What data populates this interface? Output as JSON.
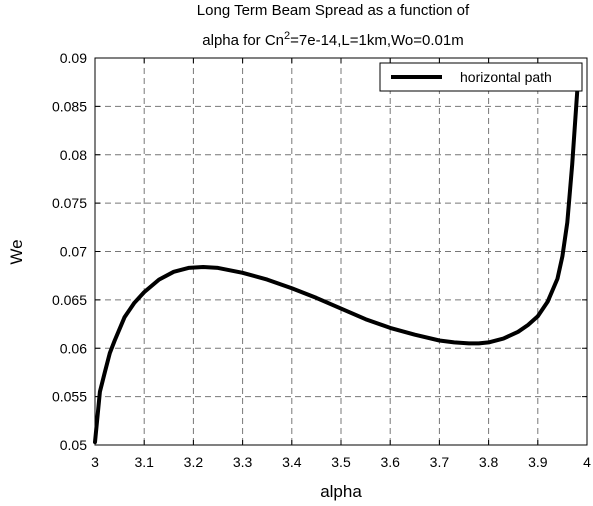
{
  "chart_data": {
    "type": "line",
    "title": {
      "line1": "Long Term Beam Spread as a function of",
      "line2_prefix": "alpha for Cn",
      "line2_superscript": "2",
      "line2_suffix": "=7e-14,L=1km,Wo=0.01m"
    },
    "xlabel": "alpha",
    "ylabel": "We",
    "xlim": [
      3,
      4
    ],
    "ylim": [
      0.05,
      0.09
    ],
    "xticks": [
      "3",
      "3.1",
      "3.2",
      "3.3",
      "3.4",
      "3.5",
      "3.6",
      "3.7",
      "3.8",
      "3.9",
      "4"
    ],
    "yticks": [
      "0.05",
      "0.055",
      "0.06",
      "0.065",
      "0.07",
      "0.075",
      "0.08",
      "0.085",
      "0.09"
    ],
    "grid": true,
    "legend_position": "top-right",
    "series": [
      {
        "name": "horizontal path",
        "color": "#000000",
        "x": [
          3.0,
          3.01,
          3.02,
          3.03,
          3.04,
          3.06,
          3.08,
          3.1,
          3.13,
          3.16,
          3.19,
          3.22,
          3.25,
          3.3,
          3.35,
          3.4,
          3.45,
          3.5,
          3.55,
          3.6,
          3.65,
          3.7,
          3.73,
          3.76,
          3.78,
          3.8,
          3.83,
          3.86,
          3.88,
          3.9,
          3.92,
          3.94,
          3.95,
          3.96,
          3.97,
          3.98
        ],
        "y": [
          0.0503,
          0.0555,
          0.0575,
          0.0595,
          0.0608,
          0.0632,
          0.0647,
          0.0658,
          0.0671,
          0.0679,
          0.0683,
          0.0684,
          0.0683,
          0.0678,
          0.0671,
          0.0662,
          0.0652,
          0.0641,
          0.063,
          0.0621,
          0.0614,
          0.0608,
          0.0606,
          0.0605,
          0.0605,
          0.0606,
          0.061,
          0.0617,
          0.0624,
          0.0633,
          0.0648,
          0.0672,
          0.0695,
          0.073,
          0.079,
          0.0865
        ]
      }
    ]
  }
}
